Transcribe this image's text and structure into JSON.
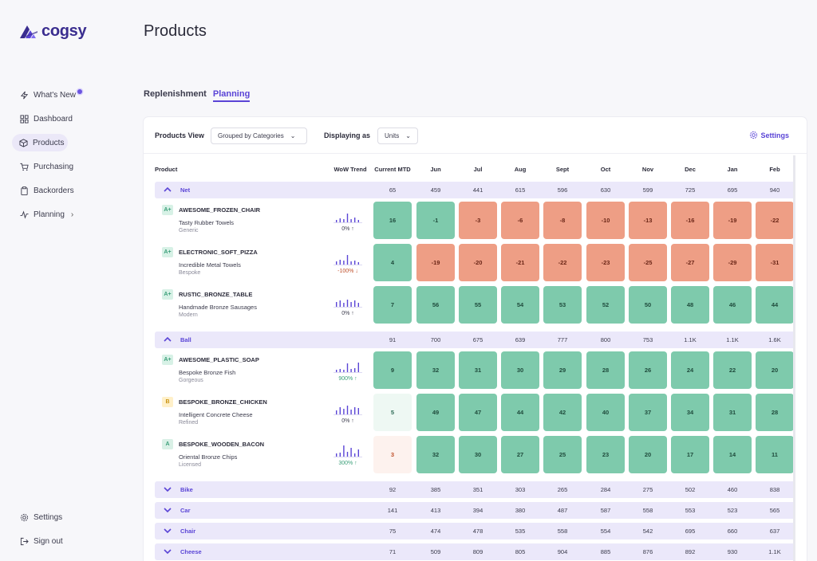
{
  "app": {
    "logo_text": "cogsy"
  },
  "sidebar": {
    "items": [
      {
        "label": "What's New",
        "icon": "bolt-icon"
      },
      {
        "label": "Dashboard",
        "icon": "grid-icon"
      },
      {
        "label": "Products",
        "icon": "box-icon"
      },
      {
        "label": "Purchasing",
        "icon": "cart-icon"
      },
      {
        "label": "Backorders",
        "icon": "clipboard-icon"
      },
      {
        "label": "Planning",
        "icon": "chart-line-icon"
      }
    ],
    "bottom": [
      {
        "label": "Settings",
        "icon": "gear-icon"
      },
      {
        "label": "Sign out",
        "icon": "sign-out-icon"
      }
    ]
  },
  "header": {
    "title": "Products"
  },
  "tabs": [
    "Replenishment",
    "Planning"
  ],
  "toolbar": {
    "products_view_label": "Products View",
    "products_view_value": "Grouped by Categories",
    "displaying_label": "Displaying as",
    "displaying_value": "Units",
    "settings_label": "Settings"
  },
  "columns": [
    "Product",
    "WoW Trend",
    "Current MTD",
    "Jun",
    "Jul",
    "Aug",
    "Sept",
    "Oct",
    "Nov",
    "Dec",
    "Jan",
    "Feb"
  ],
  "colors": {
    "accent": "#5a44d6",
    "green": "#7ecaac",
    "red": "#ee9e85",
    "group_bg": "#ebe8fa"
  },
  "groups": [
    {
      "name": "Net",
      "expanded": true,
      "values": [
        "65",
        "459",
        "441",
        "615",
        "596",
        "630",
        "599",
        "725",
        "695",
        "940"
      ],
      "products": [
        {
          "grade": "A+",
          "name": "AWESOME_FROZEN_CHAIR",
          "sub": "Tasty Rubber Towels",
          "cat": "Generic",
          "trend": "0%",
          "trend_dir": "up",
          "mtd": "16",
          "mtd_style": "green",
          "months": [
            "-1",
            "-3",
            "-6",
            "-8",
            "-10",
            "-13",
            "-16",
            "-19",
            "-22"
          ],
          "styles": [
            "green",
            "red",
            "red",
            "red",
            "red",
            "red",
            "red",
            "red",
            "red"
          ]
        },
        {
          "grade": "A+",
          "name": "ELECTRONIC_SOFT_PIZZA",
          "sub": "Incredible Metal Towels",
          "cat": "Bespoke",
          "trend": "-100%",
          "trend_dir": "down",
          "mtd": "4",
          "mtd_style": "green",
          "months": [
            "-19",
            "-20",
            "-21",
            "-22",
            "-23",
            "-25",
            "-27",
            "-29",
            "-31"
          ],
          "styles": [
            "red",
            "red",
            "red",
            "red",
            "red",
            "red",
            "red",
            "red",
            "red"
          ]
        },
        {
          "grade": "A+",
          "name": "RUSTIC_BRONZE_TABLE",
          "sub": "Handmade Bronze Sausages",
          "cat": "Modern",
          "trend": "0%",
          "trend_dir": "up",
          "mtd": "7",
          "mtd_style": "green",
          "months": [
            "56",
            "55",
            "54",
            "53",
            "52",
            "50",
            "48",
            "46",
            "44"
          ],
          "styles": [
            "green",
            "green",
            "green",
            "green",
            "green",
            "green",
            "green",
            "green",
            "green"
          ]
        }
      ]
    },
    {
      "name": "Ball",
      "expanded": true,
      "values": [
        "91",
        "700",
        "675",
        "639",
        "777",
        "800",
        "753",
        "1.1K",
        "1.1K",
        "1.6K"
      ],
      "products": [
        {
          "grade": "A+",
          "name": "AWESOME_PLASTIC_SOAP",
          "sub": "Bespoke Bronze Fish",
          "cat": "Gorgeous",
          "trend": "900%",
          "trend_dir": "up",
          "mtd": "9",
          "mtd_style": "green",
          "months": [
            "32",
            "31",
            "30",
            "29",
            "28",
            "26",
            "24",
            "22",
            "20"
          ],
          "styles": [
            "green",
            "green",
            "green",
            "green",
            "green",
            "green",
            "green",
            "green",
            "green"
          ]
        },
        {
          "grade": "B",
          "name": "BESPOKE_BRONZE_CHICKEN",
          "sub": "Intelligent Concrete Cheese",
          "cat": "Refined",
          "trend": "0%",
          "trend_dir": "up",
          "mtd": "5",
          "mtd_style": "pale",
          "months": [
            "49",
            "47",
            "44",
            "42",
            "40",
            "37",
            "34",
            "31",
            "28"
          ],
          "styles": [
            "green",
            "green",
            "green",
            "green",
            "green",
            "green",
            "green",
            "green",
            "green"
          ]
        },
        {
          "grade": "A",
          "name": "BESPOKE_WOODEN_BACON",
          "sub": "Oriental Bronze Chips",
          "cat": "Licensed",
          "trend": "300%",
          "trend_dir": "up",
          "mtd": "3",
          "mtd_style": "peach",
          "months": [
            "32",
            "30",
            "27",
            "25",
            "23",
            "20",
            "17",
            "14",
            "11"
          ],
          "styles": [
            "green",
            "green",
            "green",
            "green",
            "green",
            "green",
            "green",
            "green",
            "green"
          ]
        }
      ]
    },
    {
      "name": "Bike",
      "expanded": false,
      "values": [
        "92",
        "385",
        "351",
        "303",
        "265",
        "284",
        "275",
        "502",
        "460",
        "838"
      ],
      "products": []
    },
    {
      "name": "Car",
      "expanded": false,
      "values": [
        "141",
        "413",
        "394",
        "380",
        "487",
        "587",
        "558",
        "553",
        "523",
        "565"
      ],
      "products": []
    },
    {
      "name": "Chair",
      "expanded": false,
      "values": [
        "75",
        "474",
        "478",
        "535",
        "558",
        "554",
        "542",
        "695",
        "660",
        "637"
      ],
      "products": []
    },
    {
      "name": "Cheese",
      "expanded": false,
      "values": [
        "71",
        "509",
        "809",
        "805",
        "904",
        "885",
        "876",
        "892",
        "930",
        "1.1K"
      ],
      "products": []
    }
  ]
}
